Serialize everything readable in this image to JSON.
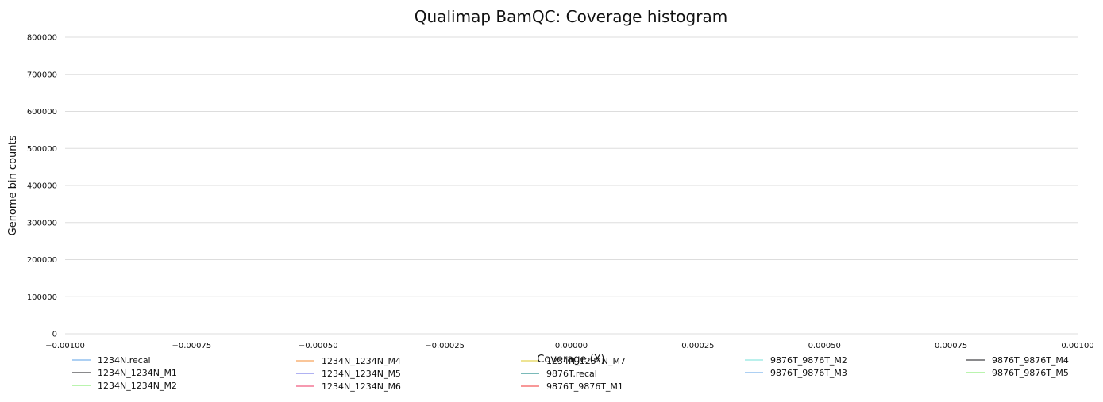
{
  "chart_data": {
    "type": "line",
    "title": "Qualimap BamQC: Coverage histogram",
    "xlabel": "Coverage (X)",
    "ylabel": "Genome bin counts",
    "xlim": [
      -0.001,
      0.001
    ],
    "ylim": [
      0,
      800000
    ],
    "xticks": [
      "−0.00100",
      "−0.00075",
      "−0.00050",
      "−0.00025",
      "0.00000",
      "0.00025",
      "0.00050",
      "0.00075",
      "0.00100"
    ],
    "yticks": [
      "0",
      "100000",
      "200000",
      "300000",
      "400000",
      "500000",
      "600000",
      "700000",
      "800000"
    ],
    "grid": true,
    "legend_position": "bottom",
    "series": [
      {
        "name": "1234N.recal",
        "color": "#7cb5ec",
        "values": []
      },
      {
        "name": "1234N_1234N_M1",
        "color": "#434348",
        "values": []
      },
      {
        "name": "1234N_1234N_M2",
        "color": "#90ed7d",
        "values": []
      },
      {
        "name": "1234N_1234N_M4",
        "color": "#f7a35c",
        "values": []
      },
      {
        "name": "1234N_1234N_M5",
        "color": "#8085e9",
        "values": []
      },
      {
        "name": "1234N_1234N_M6",
        "color": "#f15c80",
        "values": []
      },
      {
        "name": "1234N_1234N_M7",
        "color": "#e4d354",
        "values": []
      },
      {
        "name": "9876T.recal",
        "color": "#2b908f",
        "values": []
      },
      {
        "name": "9876T_9876T_M1",
        "color": "#f45b5b",
        "values": []
      },
      {
        "name": "9876T_9876T_M2",
        "color": "#91e8e1",
        "values": []
      },
      {
        "name": "9876T_9876T_M3",
        "color": "#7cb5ec",
        "values": []
      },
      {
        "name": "9876T_9876T_M4",
        "color": "#434348",
        "values": []
      },
      {
        "name": "9876T_9876T_M5",
        "color": "#90ed7d",
        "values": []
      }
    ]
  }
}
